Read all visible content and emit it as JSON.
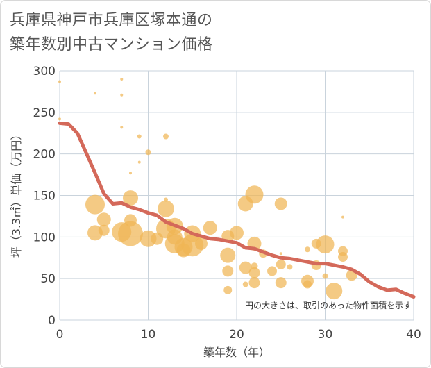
{
  "title": [
    "兵庫県神戸市兵庫区塚本通の",
    "築年数別中古マンション価格"
  ],
  "colors": {
    "bubble": "#f0b555",
    "line": "#d4695a",
    "grid": "#c9d3dc",
    "plot_bg": "#ffffff"
  },
  "chart_data": {
    "type": "scatter",
    "title": "兵庫県神戸市兵庫区塚本通の築年数別中古マンション価格",
    "xlabel": "築年数（年）",
    "ylabel": "坪（3.3㎡）単価（万円）",
    "xlim": [
      0,
      40
    ],
    "ylim": [
      0,
      300
    ],
    "xticks": [
      "0",
      "10",
      "20",
      "30",
      "40"
    ],
    "yticks": [
      "0",
      "50",
      "100",
      "150",
      "200",
      "250",
      "300"
    ],
    "grid": true,
    "annotation": "円の大きさは、取引のあった物件面積を示す",
    "series": [
      {
        "type": "bubble",
        "points": [
          {
            "x": 0,
            "y": 287,
            "s": 2
          },
          {
            "x": 0,
            "y": 242,
            "s": 2
          },
          {
            "x": 4,
            "y": 273,
            "s": 2
          },
          {
            "x": 7,
            "y": 290,
            "s": 2
          },
          {
            "x": 7,
            "y": 271,
            "s": 2
          },
          {
            "x": 7,
            "y": 232,
            "s": 2
          },
          {
            "x": 9,
            "y": 221,
            "s": 3
          },
          {
            "x": 9,
            "y": 190,
            "s": 2
          },
          {
            "x": 10,
            "y": 202,
            "s": 4
          },
          {
            "x": 8,
            "y": 177,
            "s": 2
          },
          {
            "x": 12,
            "y": 221,
            "s": 4
          },
          {
            "x": 4,
            "y": 139,
            "s": 14
          },
          {
            "x": 8,
            "y": 147,
            "s": 11
          },
          {
            "x": 5,
            "y": 121,
            "s": 10
          },
          {
            "x": 8,
            "y": 120,
            "s": 9
          },
          {
            "x": 4,
            "y": 105,
            "s": 11
          },
          {
            "x": 5,
            "y": 108,
            "s": 8
          },
          {
            "x": 7,
            "y": 106,
            "s": 14
          },
          {
            "x": 8,
            "y": 104,
            "s": 18
          },
          {
            "x": 10,
            "y": 98,
            "s": 12
          },
          {
            "x": 11,
            "y": 98,
            "s": 9
          },
          {
            "x": 12,
            "y": 134,
            "s": 12
          },
          {
            "x": 12,
            "y": 145,
            "s": 3
          },
          {
            "x": 12,
            "y": 110,
            "s": 14
          },
          {
            "x": 13,
            "y": 113,
            "s": 12
          },
          {
            "x": 13,
            "y": 100,
            "s": 11
          },
          {
            "x": 13,
            "y": 92,
            "s": 14
          },
          {
            "x": 14,
            "y": 88,
            "s": 13
          },
          {
            "x": 14,
            "y": 84,
            "s": 10
          },
          {
            "x": 15,
            "y": 104,
            "s": 12
          },
          {
            "x": 15,
            "y": 90,
            "s": 16
          },
          {
            "x": 16,
            "y": 92,
            "s": 9
          },
          {
            "x": 17,
            "y": 111,
            "s": 10
          },
          {
            "x": 19,
            "y": 101,
            "s": 9
          },
          {
            "x": 19,
            "y": 78,
            "s": 11
          },
          {
            "x": 19,
            "y": 59,
            "s": 8
          },
          {
            "x": 19,
            "y": 36,
            "s": 6
          },
          {
            "x": 20,
            "y": 105,
            "s": 10
          },
          {
            "x": 21,
            "y": 140,
            "s": 11
          },
          {
            "x": 22,
            "y": 151,
            "s": 13
          },
          {
            "x": 21,
            "y": 63,
            "s": 9
          },
          {
            "x": 21,
            "y": 43,
            "s": 4
          },
          {
            "x": 22,
            "y": 92,
            "s": 10
          },
          {
            "x": 22,
            "y": 65,
            "s": 5
          },
          {
            "x": 22,
            "y": 57,
            "s": 8
          },
          {
            "x": 22,
            "y": 45,
            "s": 8
          },
          {
            "x": 23,
            "y": 80,
            "s": 6
          },
          {
            "x": 24,
            "y": 59,
            "s": 7
          },
          {
            "x": 25,
            "y": 140,
            "s": 9
          },
          {
            "x": 25,
            "y": 67,
            "s": 7
          },
          {
            "x": 25,
            "y": 45,
            "s": 8
          },
          {
            "x": 25,
            "y": 80,
            "s": 2
          },
          {
            "x": 26,
            "y": 64,
            "s": 4
          },
          {
            "x": 28,
            "y": 85,
            "s": 4
          },
          {
            "x": 28,
            "y": 47,
            "s": 9
          },
          {
            "x": 28,
            "y": 43,
            "s": 6
          },
          {
            "x": 29,
            "y": 92,
            "s": 7
          },
          {
            "x": 29,
            "y": 66,
            "s": 7
          },
          {
            "x": 30,
            "y": 91,
            "s": 13
          },
          {
            "x": 30,
            "y": 53,
            "s": 4
          },
          {
            "x": 31,
            "y": 35,
            "s": 12
          },
          {
            "x": 32,
            "y": 124,
            "s": 2
          },
          {
            "x": 32,
            "y": 83,
            "s": 7
          },
          {
            "x": 32,
            "y": 76,
            "s": 7
          },
          {
            "x": 33,
            "y": 54,
            "s": 8
          }
        ]
      },
      {
        "type": "line",
        "x": [
          0,
          1,
          2,
          3,
          4,
          5,
          6,
          7,
          8,
          9,
          10,
          11,
          12,
          13,
          14,
          15,
          16,
          17,
          18,
          19,
          20,
          21,
          22,
          23,
          24,
          25,
          26,
          27,
          28,
          29,
          30,
          31,
          32,
          33,
          34,
          35,
          36,
          37,
          38,
          39,
          40
        ],
        "y": [
          237,
          236,
          225,
          201,
          177,
          152,
          140,
          141,
          136,
          133,
          129,
          126,
          118,
          114,
          110,
          104,
          101,
          98,
          97,
          95,
          93,
          87,
          86,
          82,
          78,
          75,
          74,
          72,
          70,
          68,
          68,
          66,
          64,
          61,
          55,
          46,
          40,
          36,
          37,
          32,
          28
        ]
      }
    ]
  }
}
